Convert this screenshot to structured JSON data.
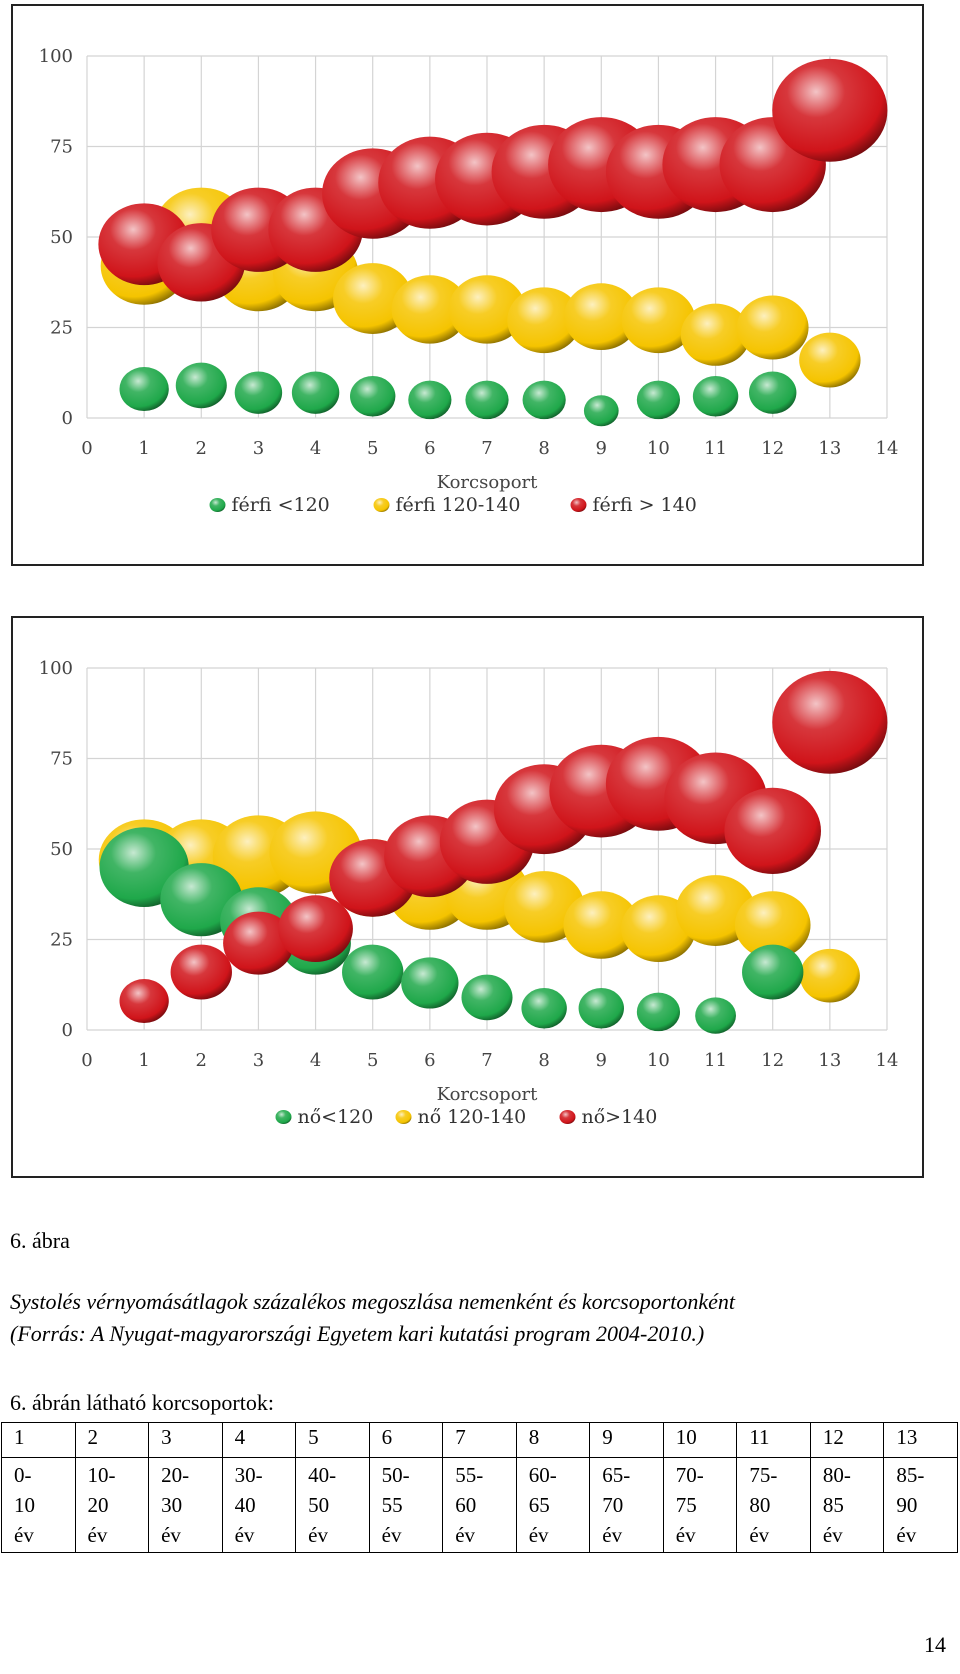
{
  "chart_data": [
    {
      "type": "scatter",
      "title": "",
      "xlabel": "Korcsoport",
      "ylabel": "",
      "xlim": [
        0,
        14
      ],
      "ylim": [
        0,
        100
      ],
      "x_ticks": [
        "0",
        "1",
        "2",
        "3",
        "4",
        "5",
        "6",
        "7",
        "8",
        "9",
        "10",
        "11",
        "12",
        "13",
        "14"
      ],
      "y_ticks": [
        "0",
        "25",
        "50",
        "75",
        "100"
      ],
      "grid": "vertical",
      "legend": "bottom",
      "series": [
        {
          "name": "férfi <120",
          "color": "#1fa84a",
          "x": [
            1,
            2,
            3,
            4,
            5,
            6,
            7,
            8,
            9,
            10,
            11,
            12
          ],
          "y": [
            8,
            9,
            7,
            7,
            6,
            5,
            5,
            5,
            2,
            5,
            6,
            7
          ]
        },
        {
          "name": "férfi 120-140",
          "color": "#f5c400",
          "x": [
            1,
            2,
            3,
            4,
            5,
            6,
            7,
            8,
            9,
            10,
            11,
            12,
            13
          ],
          "y": [
            42,
            52,
            40,
            40,
            33,
            30,
            30,
            27,
            28,
            27,
            23,
            25,
            16
          ]
        },
        {
          "name": "férfi > 140",
          "color": "#d0141a",
          "x": [
            1,
            2,
            3,
            4,
            5,
            6,
            7,
            8,
            9,
            10,
            11,
            12,
            13
          ],
          "y": [
            48,
            43,
            52,
            52,
            62,
            65,
            66,
            68,
            70,
            68,
            70,
            70,
            85
          ]
        }
      ]
    },
    {
      "type": "scatter",
      "title": "",
      "xlabel": "Korcsoport",
      "ylabel": "",
      "xlim": [
        0,
        14
      ],
      "ylim": [
        0,
        100
      ],
      "x_ticks": [
        "0",
        "1",
        "2",
        "3",
        "4",
        "5",
        "6",
        "7",
        "8",
        "9",
        "10",
        "11",
        "12",
        "13",
        "14"
      ],
      "y_ticks": [
        "0",
        "25",
        "50",
        "75",
        "100"
      ],
      "grid": "vertical",
      "legend": "bottom",
      "series": [
        {
          "name": "nő<120",
          "color": "#1fa84a",
          "x": [
            1,
            2,
            3,
            4,
            5,
            6,
            7,
            8,
            9,
            10,
            11,
            12
          ],
          "y": [
            45,
            36,
            30,
            24,
            16,
            13,
            9,
            6,
            6,
            5,
            4,
            16
          ]
        },
        {
          "name": "nő 120-140",
          "color": "#f5c400",
          "x": [
            1,
            2,
            3,
            4,
            5,
            6,
            7,
            8,
            9,
            10,
            11,
            12,
            13
          ],
          "y": [
            47,
            47,
            48,
            49,
            42,
            38,
            38,
            34,
            29,
            28,
            33,
            29,
            15
          ]
        },
        {
          "name": "nő>140",
          "color": "#d0141a",
          "x": [
            1,
            2,
            3,
            4,
            5,
            6,
            7,
            8,
            9,
            10,
            11,
            12,
            13
          ],
          "y": [
            8,
            16,
            24,
            28,
            42,
            48,
            52,
            61,
            66,
            68,
            64,
            55,
            85
          ]
        }
      ]
    }
  ],
  "figure_label": "6. ábra",
  "caption_line1": "Systolés vérnyomásátlagok százalékos megoszlása nemenként és korcsoportonként",
  "caption_line2": "(Forrás: A Nyugat-magyarországi Egyetem kari kutatási program 2004-2010.)",
  "table_title": "6. ábrán látható korcsoportok:",
  "age_groups": {
    "headers": [
      "1",
      "2",
      "3",
      "4",
      "5",
      "6",
      "7",
      "8",
      "9",
      "10",
      "11",
      "12",
      "13"
    ],
    "line1": [
      "0-",
      "10-",
      "20-",
      "30-",
      "40-",
      "50-",
      "55-",
      "60-",
      "65-",
      "70-",
      "75-",
      "80-",
      "85-"
    ],
    "line2": [
      "10",
      "20",
      "30",
      "40",
      "50",
      "55",
      "60",
      "65",
      "70",
      "75",
      "80",
      "85",
      "90"
    ],
    "line3": [
      "év",
      "év",
      "év",
      "év",
      "év",
      "év",
      "év",
      "év",
      "év",
      "év",
      "év",
      "év",
      "év"
    ]
  },
  "page_number": "14"
}
